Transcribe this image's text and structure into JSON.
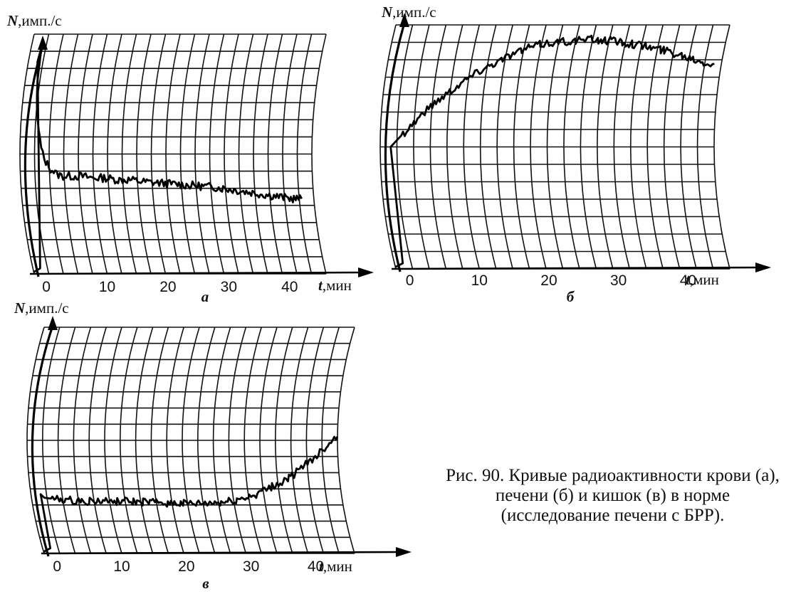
{
  "caption": "Рис. 90. Кривые радиоактивности крови (а), печени (б) и кишок (в) в норме (исследование печени с БРР).",
  "chart_data": [
    {
      "type": "line",
      "panel_label": "а",
      "ylabel": "N,имп./с",
      "xlabel": "t,мин",
      "x_ticks": [
        0,
        10,
        20,
        30,
        40
      ],
      "xlim": [
        -2,
        46
      ],
      "ylim": [
        0,
        13
      ],
      "grid": true,
      "series": [
        {
          "x": [
            -2,
            -0.8,
            -0.5,
            -0.3,
            0,
            0.5,
            1,
            1.5,
            2,
            3,
            4,
            5,
            6,
            8,
            10,
            12,
            14,
            16,
            18,
            20,
            22,
            24,
            26,
            28,
            30,
            32,
            34,
            36,
            38,
            40,
            42,
            44
          ],
          "y": [
            0.1,
            0.3,
            11.5,
            12.3,
            10.5,
            8.8,
            7.8,
            6.8,
            6.2,
            5.7,
            5.4,
            5.3,
            5.3,
            5.3,
            5.2,
            5.2,
            5.1,
            5.1,
            5.0,
            4.95,
            4.9,
            4.85,
            4.8,
            4.75,
            4.7,
            4.6,
            4.5,
            4.4,
            4.3,
            4.2,
            4.1,
            4.05
          ]
        }
      ]
    },
    {
      "type": "line",
      "panel_label": "б",
      "ylabel": "N,имп./с",
      "xlabel": "t,мин",
      "x_ticks": [
        0,
        10,
        20,
        30,
        40
      ],
      "xlim": [
        -2,
        46
      ],
      "ylim": [
        0,
        13
      ],
      "grid": true,
      "series": [
        {
          "x": [
            -2,
            -0.8,
            -0.5,
            0,
            2,
            4,
            6,
            8,
            10,
            12,
            14,
            16,
            18,
            20,
            22,
            24,
            26,
            28,
            30,
            32,
            34,
            36,
            38,
            40,
            42,
            44,
            45
          ],
          "y": [
            0.1,
            0.3,
            6.5,
            6.7,
            7.5,
            8.3,
            9.0,
            9.6,
            10.2,
            10.7,
            11.1,
            11.5,
            11.8,
            12.0,
            12.1,
            12.15,
            12.2,
            12.2,
            12.15,
            12.05,
            11.9,
            11.75,
            11.6,
            11.4,
            11.2,
            11.0,
            10.9
          ]
        }
      ]
    },
    {
      "type": "line",
      "panel_label": "в",
      "ylabel": "N,имп./с",
      "xlabel": "t,мин",
      "x_ticks": [
        0,
        10,
        20,
        30,
        40
      ],
      "xlim": [
        -2,
        46
      ],
      "ylim": [
        0,
        13
      ],
      "grid": true,
      "series": [
        {
          "x": [
            -2,
            -0.8,
            -0.5,
            0,
            2,
            4,
            6,
            8,
            10,
            12,
            14,
            16,
            18,
            20,
            22,
            24,
            26,
            28,
            30,
            32,
            34,
            36,
            38,
            40,
            42,
            44,
            46
          ],
          "y": [
            0.1,
            0.3,
            3.4,
            3.2,
            3.1,
            3.05,
            3.0,
            3.0,
            3.0,
            3.0,
            2.95,
            2.95,
            2.9,
            2.9,
            2.85,
            2.85,
            2.9,
            2.95,
            3.1,
            3.3,
            3.6,
            3.9,
            4.3,
            4.8,
            5.4,
            6.1,
            6.8
          ]
        }
      ]
    }
  ]
}
